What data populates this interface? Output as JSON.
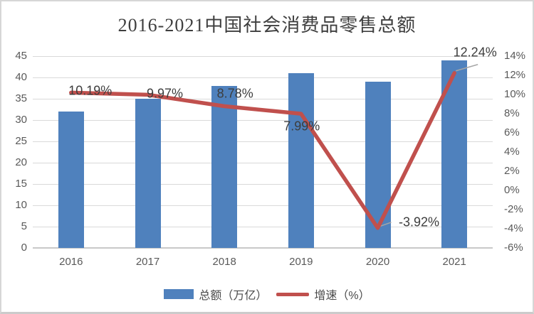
{
  "chart_data": {
    "type": "bar+line",
    "title": "2016-2021中国社会消费品零售总额",
    "categories": [
      "2016",
      "2017",
      "2018",
      "2019",
      "2020",
      "2021"
    ],
    "series": [
      {
        "name": "总额（万亿）",
        "type": "bar",
        "axis": "left",
        "color": "#4F81BD",
        "values": [
          32,
          35,
          38,
          41,
          39,
          44
        ]
      },
      {
        "name": "增速（%）",
        "type": "line",
        "axis": "right",
        "color": "#C0504D",
        "values": [
          10.19,
          9.97,
          8.78,
          7.99,
          -3.92,
          12.24
        ],
        "point_labels": [
          "10.19%",
          "9.97%",
          "8.78%",
          "7.99%",
          "-3.92%",
          "12.24%"
        ]
      }
    ],
    "axes": {
      "left": {
        "min": 0,
        "max": 45,
        "step": 5,
        "tick_labels": [
          "0",
          "5",
          "10",
          "15",
          "20",
          "25",
          "30",
          "35",
          "40",
          "45"
        ]
      },
      "right": {
        "min": -6,
        "max": 14,
        "step": 2,
        "tick_labels": [
          "-6%",
          "-4%",
          "-2%",
          "0%",
          "2%",
          "4%",
          "6%",
          "8%",
          "10%",
          "12%",
          "14%"
        ]
      }
    },
    "grid": {
      "horizontal": true,
      "color": "#D9D9D9"
    },
    "legend": {
      "position": "bottom",
      "entries": [
        "总额（万亿）",
        "增速（%）"
      ]
    },
    "colors": {
      "bar": "#4F81BD",
      "line": "#C0504D",
      "leader_line": "#A6A6A6",
      "axis_text": "#595959",
      "data_label_text": "#3D3D3D",
      "title_text": "#3E3E3E",
      "gridline": "#D9D9D9"
    }
  }
}
